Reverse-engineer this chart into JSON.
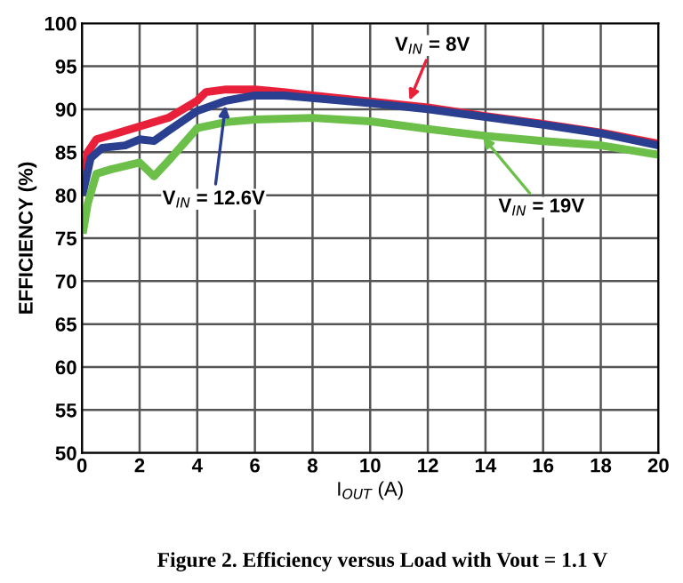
{
  "chart_data": {
    "type": "line",
    "xlabel": "I$_{OUT}$ (A)",
    "ylabel": "EFFICIENCY (%)",
    "xlim": [
      0,
      20
    ],
    "xticks": [
      0,
      2,
      4,
      6,
      8,
      10,
      12,
      14,
      16,
      18,
      20
    ],
    "ylim": [
      50,
      100
    ],
    "yticks": [
      50,
      55,
      60,
      65,
      70,
      75,
      80,
      85,
      90,
      95,
      100
    ],
    "grid": true,
    "legend": false,
    "marker": "none",
    "line_style": "solid",
    "series": [
      {
        "color": "#e8203a",
        "x": [
          0.05,
          0.2,
          0.5,
          1,
          2,
          3,
          4,
          4.3,
          5,
          6,
          7,
          8,
          10,
          12,
          14,
          16,
          18,
          20
        ],
        "values": [
          81,
          85,
          86.5,
          87,
          88,
          89,
          91,
          92,
          92.3,
          92.3,
          92,
          91.6,
          90.9,
          90.2,
          89.2,
          88.3,
          87.3,
          86
        ]
      },
      {
        "color": "#2a3f8f",
        "x": [
          0.05,
          0.3,
          0.7,
          1.5,
          2,
          2.5,
          3,
          4,
          5,
          6,
          7,
          8,
          10,
          12,
          14,
          16,
          18,
          20
        ],
        "values": [
          80.5,
          84.3,
          85.5,
          85.8,
          86.5,
          86.3,
          87.5,
          89.8,
          91,
          91.6,
          91.6,
          91.3,
          90.7,
          90,
          89.1,
          88.2,
          87.2,
          85.8
        ]
      },
      {
        "color": "#6cc04a",
        "x": [
          0.05,
          0.2,
          0.5,
          1,
          2,
          2.5,
          3,
          4,
          5,
          6,
          8,
          10,
          12,
          14,
          16,
          18,
          20
        ],
        "values": [
          76,
          79,
          82.5,
          83,
          83.8,
          82.2,
          84,
          87.8,
          88.5,
          88.8,
          89,
          88.6,
          87.7,
          86.9,
          86.3,
          85.8,
          84.7
        ]
      }
    ],
    "annotations": [
      {
        "text": "V$_{IN}$ = 8V",
        "x": 11.3,
        "y": 90.5
      },
      {
        "text": "V$_{IN}$ = 12.6V",
        "x": 5,
        "y": 91
      },
      {
        "text": "V$_{IN}$ = 19V",
        "x": 13.8,
        "y": 87.2
      },
      "Figure 2. Efficiency versus Load with Vout = 1.1 V"
    ]
  }
}
